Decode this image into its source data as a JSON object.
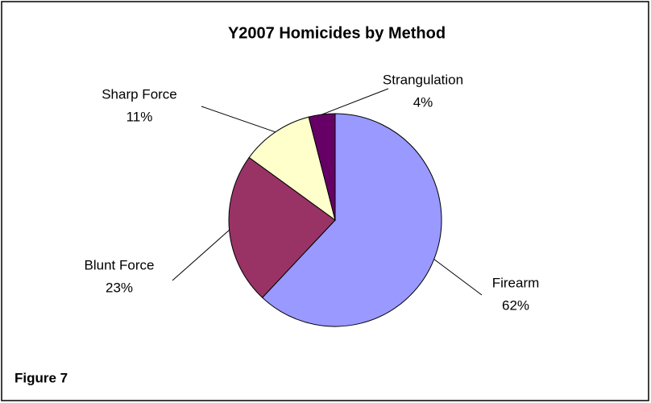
{
  "chart_data": {
    "type": "pie",
    "title": "Y2007 Homicides by Method",
    "categories": [
      "Firearm",
      "Blunt Force",
      "Sharp Force",
      "Strangulation"
    ],
    "values": [
      62,
      23,
      11,
      4
    ],
    "value_labels": [
      "62%",
      "23%",
      "11%",
      "4%"
    ],
    "colors": [
      "#9999ff",
      "#993366",
      "#ffffcc",
      "#660066"
    ],
    "annotation": "Figure 7"
  }
}
